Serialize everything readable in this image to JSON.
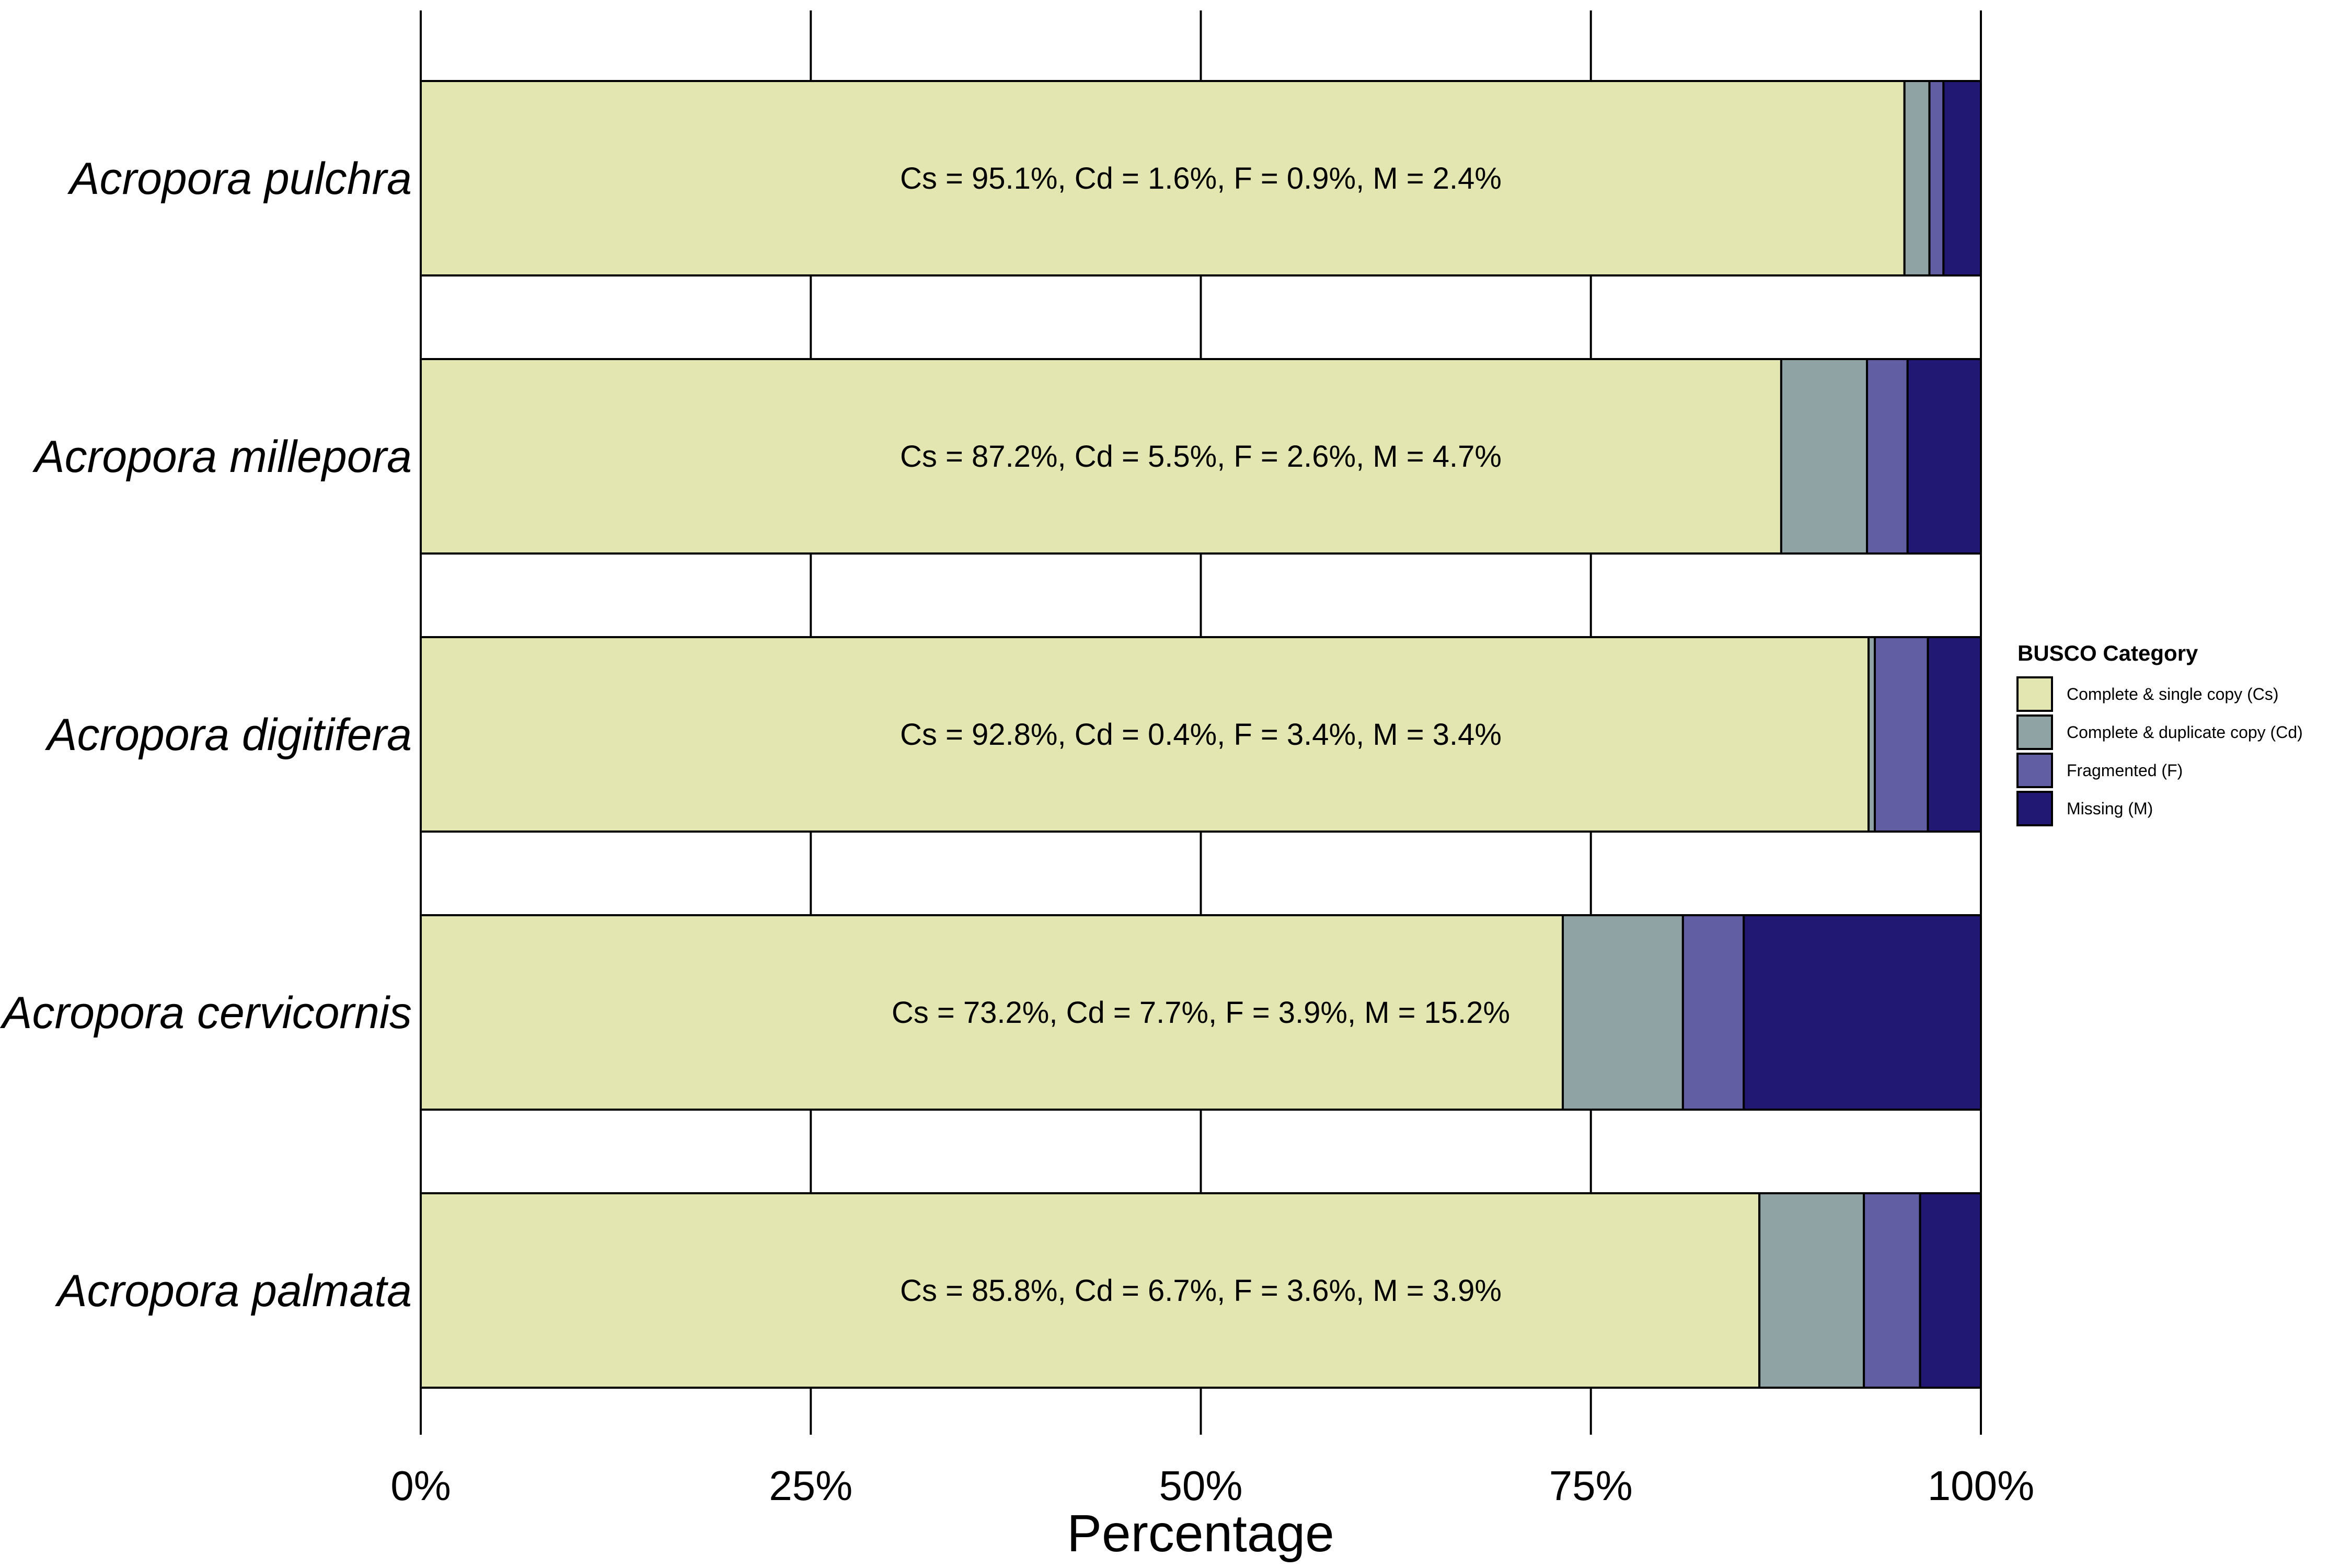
{
  "chart_data": {
    "type": "bar",
    "orientation": "horizontal",
    "stacked": true,
    "categories": [
      "Acropora pulchra",
      "Acropora millepora",
      "Acropora digitifera",
      "Acropora cervicornis",
      "Acropora palmata"
    ],
    "series": [
      {
        "name": "Complete & single copy (Cs)",
        "color": "#e3e6b0",
        "values": [
          95.1,
          87.2,
          92.8,
          73.2,
          85.8
        ]
      },
      {
        "name": "Complete & duplicate copy (Cd)",
        "color": "#8fa3a5",
        "values": [
          1.6,
          5.5,
          0.4,
          7.7,
          6.7
        ]
      },
      {
        "name": "Fragmented (F)",
        "color": "#625ea3",
        "values": [
          0.9,
          2.6,
          3.4,
          3.9,
          3.6
        ]
      },
      {
        "name": "Missing (M)",
        "color": "#211873",
        "values": [
          2.4,
          4.7,
          3.4,
          15.2,
          3.9
        ]
      }
    ],
    "bar_labels": [
      "Cs = 95.1%, Cd = 1.6%, F = 0.9%, M = 2.4%",
      "Cs = 87.2%, Cd = 5.5%, F = 2.6%, M = 4.7%",
      "Cs = 92.8%, Cd = 0.4%, F = 3.4%, M = 3.4%",
      "Cs = 73.2%, Cd = 7.7%, F = 3.9%, M = 15.2%",
      "Cs = 85.8%, Cd = 6.7%, F = 3.6%, M = 3.9%"
    ],
    "xlabel": "Percentage",
    "ylabel": "",
    "xlim": [
      0,
      100
    ],
    "xticks": [
      0,
      25,
      50,
      75,
      100
    ],
    "xtick_labels": [
      "0%",
      "25%",
      "50%",
      "75%",
      "100%"
    ],
    "grid": "vertical major lines",
    "legend": {
      "title": "BUSCO Category",
      "placement": "right"
    }
  }
}
